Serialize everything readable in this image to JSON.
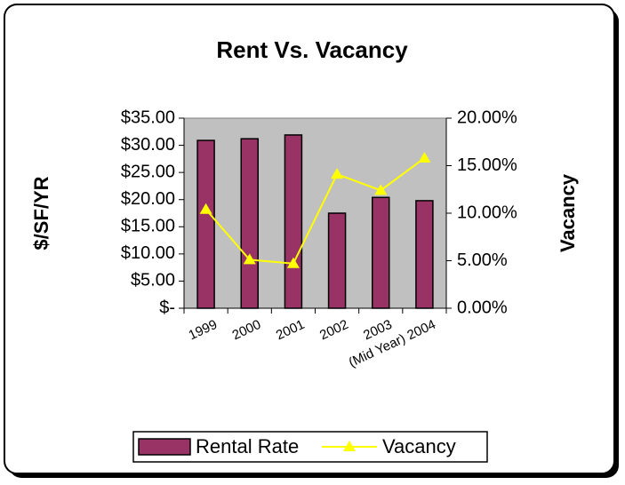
{
  "chart_data": {
    "type": "bar",
    "title": "Rent Vs. Vacancy",
    "y_label": "$/SF/YR",
    "y2_label": "Vacancy",
    "categories": [
      "1999",
      "2000",
      "2001",
      "2002",
      "2003",
      "(Mid Year) 2004"
    ],
    "series": [
      {
        "name": "Rental Rate",
        "type": "bar",
        "color": "#993366",
        "values": [
          30.9,
          31.2,
          31.9,
          17.5,
          20.4,
          19.8
        ]
      },
      {
        "name": "Vacancy",
        "type": "line",
        "axis": "y2",
        "color": "#ffff00",
        "values": [
          10.4,
          5.1,
          4.7,
          14.1,
          12.4,
          15.8
        ]
      }
    ],
    "ylim": [
      0,
      35
    ],
    "yticks": [
      {
        "value": 0,
        "label": "$-"
      },
      {
        "value": 5,
        "label": "$5.00"
      },
      {
        "value": 10,
        "label": "$10.00"
      },
      {
        "value": 15,
        "label": "$15.00"
      },
      {
        "value": 20,
        "label": "$20.00"
      },
      {
        "value": 25,
        "label": "$25.00"
      },
      {
        "value": 30,
        "label": "$30.00"
      },
      {
        "value": 35,
        "label": "$35.00"
      }
    ],
    "y2lim": [
      0,
      20
    ],
    "y2ticks": [
      {
        "value": 0,
        "label": "0.00%"
      },
      {
        "value": 5,
        "label": "5.00%"
      },
      {
        "value": 10,
        "label": "10.00%"
      },
      {
        "value": 15,
        "label": "15.00%"
      },
      {
        "value": 20,
        "label": "20.00%"
      }
    ],
    "legend": "bottom",
    "plot_background": "#c0c0c0"
  }
}
